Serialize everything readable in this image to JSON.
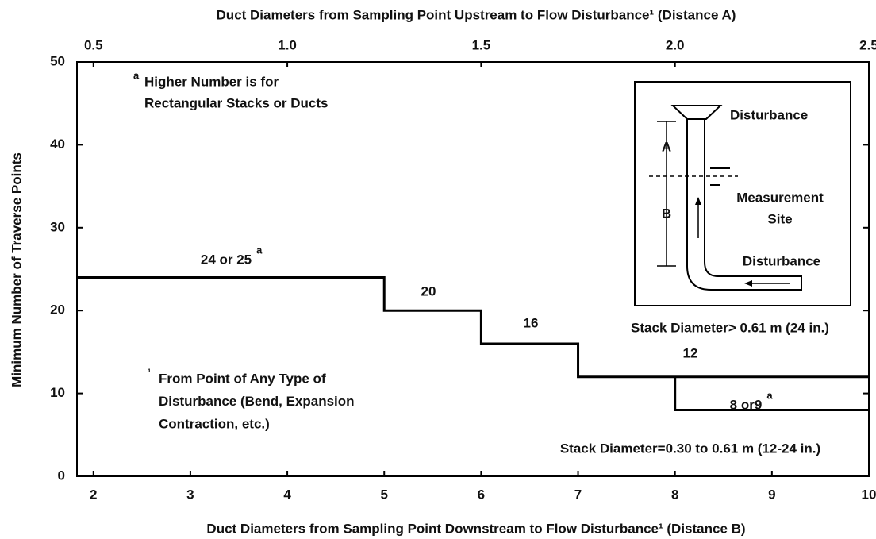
{
  "chart_data": {
    "type": "line",
    "title": "Duct Diameters from Sampling Point Upstream to Flow Disturbance¹ (Distance A)",
    "x_label": "Duct Diameters from Sampling Point Downstream to Flow Disturbance¹ (Distance B)",
    "y_label": "Minimum Number of Traverse Points",
    "xlim": [
      1.83,
      10
    ],
    "xticks": [
      2,
      3,
      4,
      5,
      6,
      7,
      8,
      9,
      10
    ],
    "x2lim": [
      0.4575,
      2.5
    ],
    "x2ticks": [
      0.5,
      {
        "value": 1,
        "label": "1.0"
      },
      1.5,
      {
        "value": 2,
        "label": "2.0"
      },
      2.5
    ],
    "ylim": [
      0,
      50
    ],
    "yticks": [
      0,
      10,
      20,
      30,
      40,
      50
    ],
    "series": [
      {
        "name": "Stack Diameter> 0.61 m (24 in.)",
        "color": "#000000",
        "x": [
          1.83,
          5,
          5,
          6,
          6,
          7,
          7,
          10
        ],
        "values": [
          24,
          24,
          20,
          20,
          16,
          16,
          12,
          12
        ]
      },
      {
        "name": "Stack Diameter=0.30 to 0.61 m (12-24 in.)",
        "color": "#000000",
        "x": [
          8,
          8,
          10
        ],
        "values": [
          12,
          8,
          8
        ]
      }
    ],
    "step_labels": [
      {
        "text": "24 or 25",
        "superscript": "a"
      },
      {
        "text": "20"
      },
      {
        "text": "16"
      },
      {
        "text": "12"
      },
      {
        "text": "8 or9",
        "superscript": "a"
      }
    ],
    "notes": [
      {
        "superscript": "a",
        "lines": [
          "Higher Number is for",
          "Rectangular Stacks or Ducts"
        ]
      },
      {
        "superscript": "¹",
        "lines": [
          "From Point of Any Type of",
          "Disturbance (Bend, Expansion",
          "Contraction, etc.)"
        ]
      }
    ],
    "inset_labels": [
      "Disturbance",
      "A",
      "B",
      "Measurement",
      "Site",
      "Disturbance"
    ]
  }
}
